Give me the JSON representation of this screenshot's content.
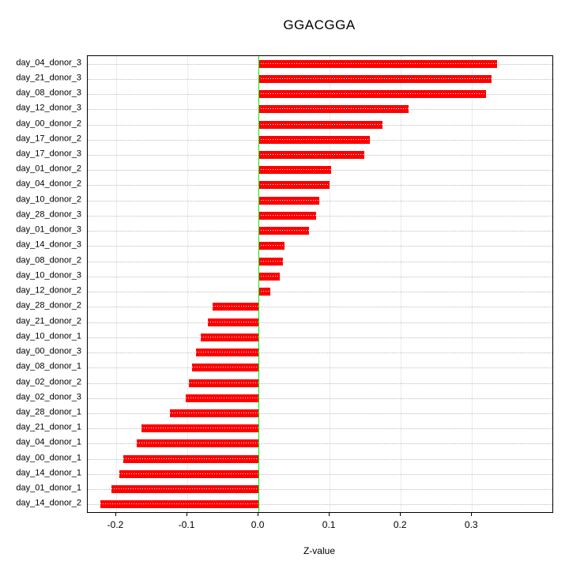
{
  "title": "GGACGGA",
  "chart_data": {
    "type": "bar",
    "orientation": "horizontal",
    "title": "GGACGGA",
    "xlabel": "Z-value",
    "grid": true,
    "legend": null,
    "xlim": [
      -0.24,
      0.413
    ],
    "xticks": [
      {
        "value": -0.2,
        "label": "-0.2"
      },
      {
        "value": -0.1,
        "label": "-0.1"
      },
      {
        "value": 0.0,
        "label": "0.0"
      },
      {
        "value": 0.1,
        "label": "0.1"
      },
      {
        "value": 0.2,
        "label": "0.2"
      },
      {
        "value": 0.3,
        "label": "0.3"
      }
    ],
    "bar_color": "#FF0000",
    "zero_line_color": "#00EE00",
    "grid_color": "#BDBDBD",
    "categories": [
      "day_04_donor_3",
      "day_21_donor_3",
      "day_08_donor_3",
      "day_12_donor_3",
      "day_00_donor_2",
      "day_17_donor_2",
      "day_17_donor_3",
      "day_01_donor_2",
      "day_04_donor_2",
      "day_10_donor_2",
      "day_28_donor_3",
      "day_01_donor_3",
      "day_14_donor_3",
      "day_08_donor_2",
      "day_10_donor_3",
      "day_12_donor_2",
      "day_28_donor_2",
      "day_21_donor_2",
      "day_10_donor_1",
      "day_00_donor_3",
      "day_08_donor_1",
      "day_02_donor_2",
      "day_02_donor_3",
      "day_28_donor_1",
      "day_21_donor_1",
      "day_04_donor_1",
      "day_00_donor_1",
      "day_14_donor_1",
      "day_01_donor_1",
      "day_14_donor_2"
    ],
    "values": [
      0.335,
      0.328,
      0.32,
      0.211,
      0.174,
      0.156,
      0.149,
      0.102,
      0.1,
      0.085,
      0.081,
      0.071,
      0.036,
      0.034,
      0.03,
      0.016,
      -0.064,
      -0.071,
      -0.081,
      -0.088,
      -0.093,
      -0.098,
      -0.102,
      -0.124,
      -0.164,
      -0.171,
      -0.19,
      -0.196,
      -0.207,
      -0.222
    ]
  }
}
